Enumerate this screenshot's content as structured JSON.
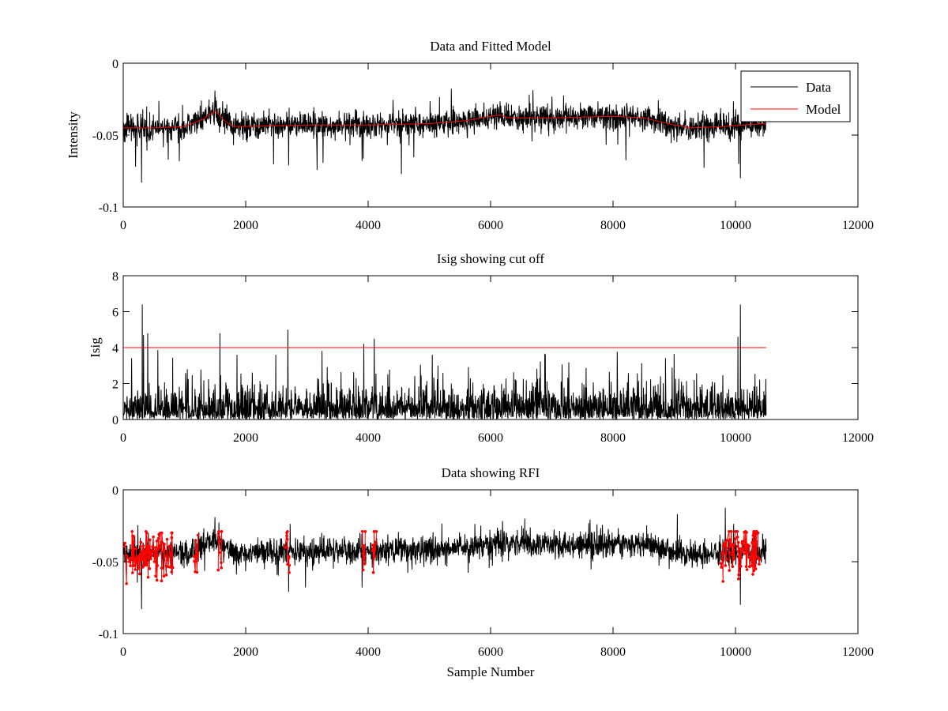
{
  "chart_data": [
    {
      "type": "line",
      "title": "Data and Fitted Model",
      "xlabel": "",
      "ylabel": "Intensity",
      "xlim": [
        0,
        12000
      ],
      "ylim": [
        -0.1,
        0
      ],
      "xticks": [
        0,
        2000,
        4000,
        6000,
        8000,
        10000,
        12000
      ],
      "yticks": [
        -0.1,
        -0.05,
        0
      ],
      "ytick_labels": [
        "-0.1",
        "-0.05",
        "0"
      ],
      "legend": {
        "position": "top-right",
        "entries": [
          "Data",
          "Model"
        ]
      },
      "series": [
        {
          "name": "Data",
          "color": "#000000",
          "kind": "noisy",
          "x_range": [
            0,
            10500
          ],
          "noise_amplitude": 0.0045,
          "spikes": [
            {
              "x": 300,
              "y": -0.083
            },
            {
              "x": 200,
              "y": -0.072
            },
            {
              "x": 1500,
              "y": -0.019
            },
            {
              "x": 2700,
              "y": -0.071
            },
            {
              "x": 3900,
              "y": -0.068
            },
            {
              "x": 10080,
              "y": -0.08
            },
            {
              "x": 10050,
              "y": -0.07
            }
          ]
        },
        {
          "name": "Model",
          "color": "#ff0000",
          "x": [
            0,
            500,
            1000,
            1300,
            1500,
            1650,
            1800,
            2000,
            3000,
            4000,
            5000,
            5600,
            6000,
            6150,
            6300,
            7000,
            8000,
            8500,
            9000,
            9300,
            9800,
            10500
          ],
          "y": [
            -0.045,
            -0.045,
            -0.044,
            -0.039,
            -0.033,
            -0.04,
            -0.044,
            -0.044,
            -0.043,
            -0.043,
            -0.042,
            -0.04,
            -0.037,
            -0.036,
            -0.038,
            -0.038,
            -0.037,
            -0.038,
            -0.043,
            -0.045,
            -0.044,
            -0.042
          ]
        }
      ]
    },
    {
      "type": "line",
      "title": "Isig showing cut off",
      "xlabel": "",
      "ylabel": "Isig",
      "xlim": [
        0,
        12000
      ],
      "ylim": [
        0,
        8
      ],
      "xticks": [
        0,
        2000,
        4000,
        6000,
        8000,
        10000,
        12000
      ],
      "yticks": [
        0,
        2,
        4,
        6,
        8
      ],
      "ytick_labels": [
        "0",
        "2",
        "4",
        "6",
        "8"
      ],
      "series": [
        {
          "name": "Isig",
          "color": "#000000",
          "kind": "abs-noise",
          "x_range": [
            0,
            10500
          ],
          "spikes": [
            {
              "x": 310,
              "y": 6.4
            },
            {
              "x": 330,
              "y": 4.7
            },
            {
              "x": 400,
              "y": 4.8
            },
            {
              "x": 1580,
              "y": 4.8
            },
            {
              "x": 2690,
              "y": 5.0
            },
            {
              "x": 3930,
              "y": 4.2
            },
            {
              "x": 4100,
              "y": 4.5
            },
            {
              "x": 10080,
              "y": 6.4
            },
            {
              "x": 10040,
              "y": 4.6
            }
          ]
        },
        {
          "name": "Cut off",
          "color": "#ff0000",
          "x": [
            0,
            10500
          ],
          "y": [
            4,
            4
          ]
        }
      ]
    },
    {
      "type": "line",
      "title": "Data showing RFI",
      "xlabel": "Sample Number",
      "ylabel": "",
      "xlim": [
        0,
        12000
      ],
      "ylim": [
        -0.1,
        0
      ],
      "xticks": [
        0,
        2000,
        4000,
        6000,
        8000,
        10000,
        12000
      ],
      "yticks": [
        -0.1,
        -0.05,
        0
      ],
      "ytick_labels": [
        "-0.1",
        "-0.05",
        "0"
      ],
      "series": [
        {
          "name": "Data",
          "color": "#000000",
          "kind": "noisy",
          "x_range": [
            0,
            10500
          ],
          "noise_amplitude": 0.0045,
          "spikes": [
            {
              "x": 300,
              "y": -0.083
            },
            {
              "x": 1500,
              "y": -0.019
            },
            {
              "x": 2700,
              "y": -0.071
            },
            {
              "x": 3900,
              "y": -0.068
            },
            {
              "x": 10080,
              "y": -0.08
            }
          ]
        },
        {
          "name": "RFI",
          "color": "#ff0000",
          "kind": "markers",
          "regions": [
            [
              0,
              820
            ],
            [
              1150,
              1230
            ],
            [
              1540,
              1620
            ],
            [
              2640,
              2720
            ],
            [
              3880,
              3960
            ],
            [
              4060,
              4140
            ],
            [
              9750,
              10400
            ]
          ],
          "marker_y_range": [
            -0.082,
            -0.029
          ]
        }
      ]
    }
  ]
}
